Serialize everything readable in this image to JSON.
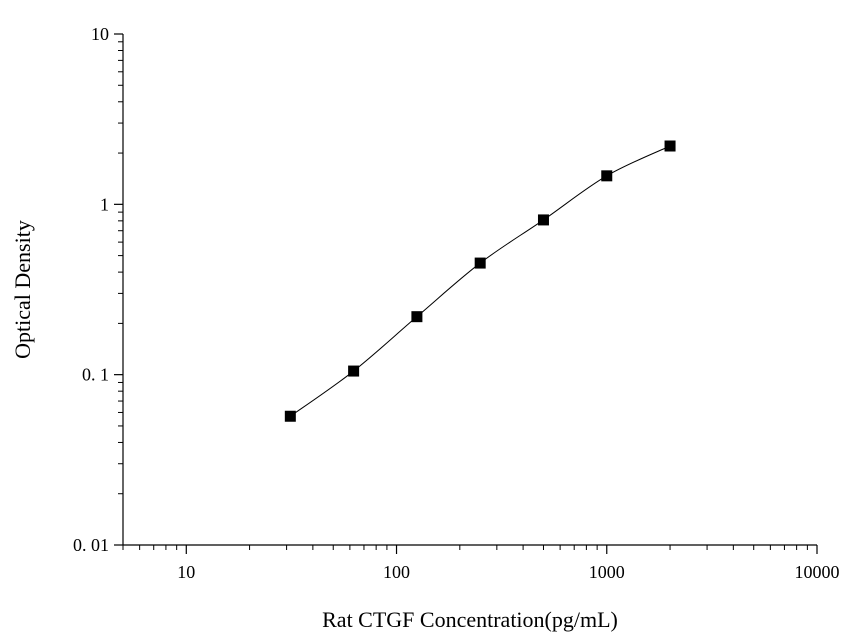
{
  "chart_data": {
    "type": "scatter",
    "xlabel": "Rat CTGF Concentration(pg/mL)",
    "ylabel": "Optical Density",
    "x_scale": "log",
    "y_scale": "log",
    "xlim": [
      5,
      10000
    ],
    "ylim": [
      0.01,
      10
    ],
    "x_ticks": [
      10,
      100,
      1000,
      10000
    ],
    "x_tick_labels": [
      "10",
      "100",
      "1000",
      "10000"
    ],
    "y_ticks": [
      0.01,
      0.1,
      1,
      10
    ],
    "y_tick_labels": [
      "0. 01",
      "0. 1",
      "1",
      "10"
    ],
    "grid": false,
    "legend": "none",
    "series": [
      {
        "marker": "square",
        "line": "smooth",
        "color": "#000000",
        "x": [
          31.25,
          62.5,
          125,
          250,
          500,
          1000,
          2000
        ],
        "y": [
          0.057,
          0.105,
          0.219,
          0.452,
          0.81,
          1.47,
          2.2
        ]
      }
    ]
  }
}
